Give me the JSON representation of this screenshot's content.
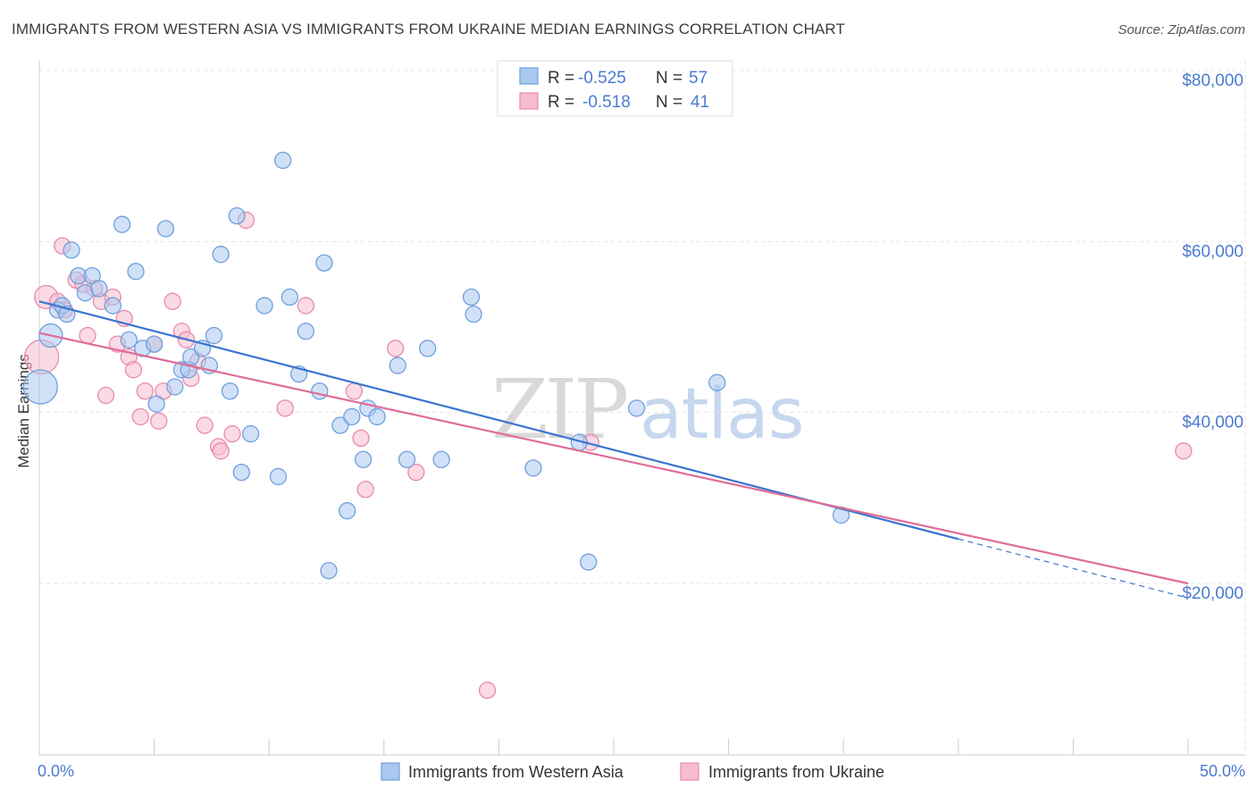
{
  "chart_data": {
    "type": "scatter",
    "title": "IMMIGRANTS FROM WESTERN ASIA VS IMMIGRANTS FROM UKRAINE MEDIAN EARNINGS CORRELATION CHART",
    "source": "Source: ZipAtlas.com",
    "ylabel": "Median Earnings",
    "xlim": [
      0,
      50
    ],
    "ylim": [
      0,
      85000
    ],
    "x_tick_labels": {
      "min": "0.0%",
      "max": "50.0%"
    },
    "y_ticks": [
      {
        "value": 20000,
        "label": "$20,000"
      },
      {
        "value": 40000,
        "label": "$40,000"
      },
      {
        "value": 60000,
        "label": "$60,000"
      },
      {
        "value": 80000,
        "label": "$80,000"
      }
    ],
    "colors": {
      "series1_fill": "#aac8f0",
      "series1_stroke": "#6f9fdc",
      "series1_line": "#3a74d0",
      "series2_fill": "#f6bcd0",
      "series2_stroke": "#e98aab",
      "series2_line": "#e06c97",
      "grid": "#e4e4e4",
      "accent_text": "#4a7bd0"
    },
    "legend": {
      "series1": {
        "r_label": "R = ",
        "r_value": "-0.525",
        "n_label": "N = ",
        "n_value": "57"
      },
      "series2": {
        "r_label": "R = ",
        "r_value": "-0.518",
        "n_label": "N = ",
        "n_value": "41"
      }
    },
    "watermark": {
      "zip": "ZIP",
      "atlas": "atlas"
    },
    "series": [
      {
        "name": "Immigrants from Western Asia",
        "trend": {
          "x1": 0,
          "y1": 53000,
          "x2": 40,
          "y2": 25200,
          "dash_to_x": 50,
          "dash_to_y": 18300
        },
        "points": [
          {
            "x": 0.05,
            "y": 43000,
            "big": 2
          },
          {
            "x": 0.5,
            "y": 49000,
            "big": 1
          },
          {
            "x": 0.8,
            "y": 52000
          },
          {
            "x": 1.0,
            "y": 52500
          },
          {
            "x": 1.2,
            "y": 51500
          },
          {
            "x": 1.4,
            "y": 59000
          },
          {
            "x": 1.7,
            "y": 56000
          },
          {
            "x": 2.3,
            "y": 56000
          },
          {
            "x": 2.0,
            "y": 54000
          },
          {
            "x": 2.6,
            "y": 54500
          },
          {
            "x": 3.2,
            "y": 52500
          },
          {
            "x": 3.6,
            "y": 62000
          },
          {
            "x": 3.9,
            "y": 48500
          },
          {
            "x": 4.2,
            "y": 56500
          },
          {
            "x": 4.5,
            "y": 47500
          },
          {
            "x": 5.0,
            "y": 48000
          },
          {
            "x": 5.1,
            "y": 41000
          },
          {
            "x": 5.5,
            "y": 61500
          },
          {
            "x": 5.9,
            "y": 43000
          },
          {
            "x": 6.2,
            "y": 45000
          },
          {
            "x": 6.5,
            "y": 45000
          },
          {
            "x": 6.6,
            "y": 46500
          },
          {
            "x": 7.1,
            "y": 47500
          },
          {
            "x": 7.4,
            "y": 45500
          },
          {
            "x": 7.6,
            "y": 49000
          },
          {
            "x": 7.9,
            "y": 58500
          },
          {
            "x": 8.3,
            "y": 42500
          },
          {
            "x": 8.6,
            "y": 63000
          },
          {
            "x": 8.8,
            "y": 33000
          },
          {
            "x": 9.2,
            "y": 37500
          },
          {
            "x": 9.8,
            "y": 52500
          },
          {
            "x": 10.4,
            "y": 32500
          },
          {
            "x": 10.6,
            "y": 69500
          },
          {
            "x": 10.9,
            "y": 53500
          },
          {
            "x": 11.3,
            "y": 44500
          },
          {
            "x": 11.6,
            "y": 49500
          },
          {
            "x": 12.2,
            "y": 42500
          },
          {
            "x": 12.4,
            "y": 57500
          },
          {
            "x": 12.6,
            "y": 21500
          },
          {
            "x": 13.1,
            "y": 38500
          },
          {
            "x": 13.4,
            "y": 28500
          },
          {
            "x": 13.6,
            "y": 39500
          },
          {
            "x": 14.1,
            "y": 34500
          },
          {
            "x": 14.3,
            "y": 40500
          },
          {
            "x": 14.7,
            "y": 39500
          },
          {
            "x": 15.6,
            "y": 45500
          },
          {
            "x": 16.0,
            "y": 34500
          },
          {
            "x": 16.9,
            "y": 47500
          },
          {
            "x": 17.5,
            "y": 34500
          },
          {
            "x": 18.8,
            "y": 53500
          },
          {
            "x": 18.9,
            "y": 51500
          },
          {
            "x": 21.5,
            "y": 33500
          },
          {
            "x": 23.5,
            "y": 36500
          },
          {
            "x": 23.9,
            "y": 22500
          },
          {
            "x": 26.0,
            "y": 40500
          },
          {
            "x": 29.5,
            "y": 43500
          },
          {
            "x": 34.9,
            "y": 28000
          }
        ]
      },
      {
        "name": "Immigrants from Ukraine",
        "trend": {
          "x1": 0,
          "y1": 49300,
          "x2": 50,
          "y2": 20000
        },
        "points": [
          {
            "x": 0.1,
            "y": 46500,
            "big": 2
          },
          {
            "x": 0.3,
            "y": 53500,
            "big": 1
          },
          {
            "x": 0.8,
            "y": 53000
          },
          {
            "x": 1.1,
            "y": 52000
          },
          {
            "x": 1.0,
            "y": 59500
          },
          {
            "x": 1.6,
            "y": 55500
          },
          {
            "x": 1.9,
            "y": 55000
          },
          {
            "x": 2.1,
            "y": 49000
          },
          {
            "x": 2.4,
            "y": 54500
          },
          {
            "x": 2.7,
            "y": 53000
          },
          {
            "x": 2.9,
            "y": 42000
          },
          {
            "x": 3.2,
            "y": 53500
          },
          {
            "x": 3.4,
            "y": 48000
          },
          {
            "x": 3.7,
            "y": 51000
          },
          {
            "x": 3.9,
            "y": 46500
          },
          {
            "x": 4.1,
            "y": 45000
          },
          {
            "x": 4.4,
            "y": 39500
          },
          {
            "x": 4.6,
            "y": 42500
          },
          {
            "x": 5.0,
            "y": 48000
          },
          {
            "x": 5.2,
            "y": 39000
          },
          {
            "x": 5.4,
            "y": 42500
          },
          {
            "x": 5.8,
            "y": 53000
          },
          {
            "x": 6.2,
            "y": 49500
          },
          {
            "x": 6.4,
            "y": 48500
          },
          {
            "x": 6.6,
            "y": 44000
          },
          {
            "x": 6.9,
            "y": 46000
          },
          {
            "x": 7.2,
            "y": 38500
          },
          {
            "x": 7.8,
            "y": 36000
          },
          {
            "x": 7.9,
            "y": 35500
          },
          {
            "x": 8.4,
            "y": 37500
          },
          {
            "x": 9.0,
            "y": 62500
          },
          {
            "x": 10.7,
            "y": 40500
          },
          {
            "x": 11.6,
            "y": 52500
          },
          {
            "x": 13.7,
            "y": 42500
          },
          {
            "x": 14.0,
            "y": 37000
          },
          {
            "x": 14.2,
            "y": 31000
          },
          {
            "x": 15.5,
            "y": 47500
          },
          {
            "x": 16.4,
            "y": 33000
          },
          {
            "x": 19.5,
            "y": 7500
          },
          {
            "x": 24.0,
            "y": 36500
          },
          {
            "x": 49.8,
            "y": 35500
          }
        ]
      }
    ]
  }
}
